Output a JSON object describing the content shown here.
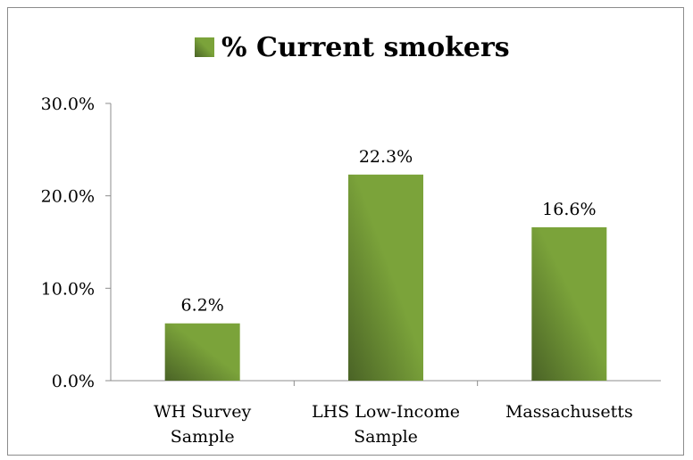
{
  "chart_data": {
    "type": "bar",
    "title": "% Current smokers",
    "categories": [
      [
        "WH Survey",
        "Sample"
      ],
      [
        "LHS Low-Income",
        "Sample"
      ],
      [
        "Massachusetts"
      ]
    ],
    "series": [
      {
        "name": "% Current smokers",
        "values": [
          6.2,
          22.3,
          16.6
        ]
      }
    ],
    "data_labels": [
      "6.2%",
      "22.3%",
      "16.6%"
    ],
    "ylim": [
      0,
      30
    ],
    "yticks": [
      0,
      10,
      20,
      30
    ],
    "ytick_labels": [
      "0.0%",
      "10.0%",
      "20.0%",
      "30.0%"
    ],
    "grid": false,
    "legend_position": "top",
    "colors": {
      "bar_light": "#7ba33a",
      "bar_dark": "#4a6326",
      "axis": "#8c8c8c"
    }
  }
}
